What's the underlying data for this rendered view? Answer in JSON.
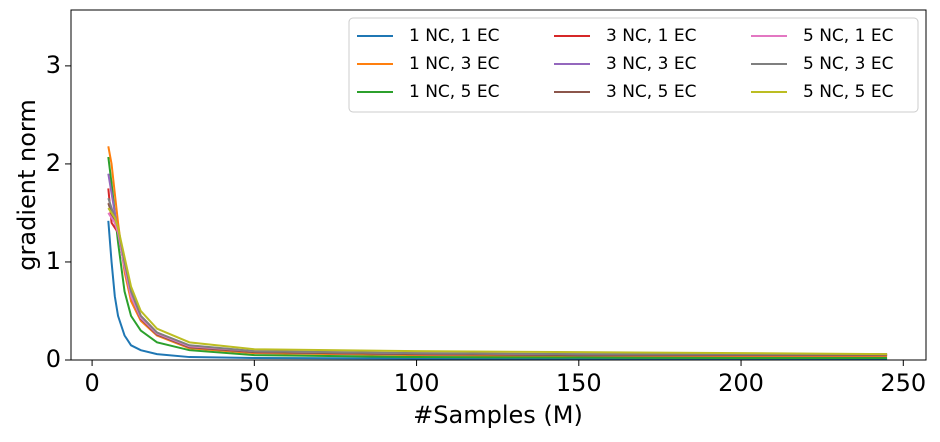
{
  "chart_data": {
    "type": "line",
    "x_label": "#Samples (M)",
    "y_label": "gradient norm",
    "x": [
      5,
      6,
      7,
      8,
      10,
      12,
      15,
      20,
      30,
      50,
      100,
      150,
      200,
      245
    ],
    "xlim": [
      -6.5,
      257
    ],
    "xticks": [
      0,
      50,
      100,
      150,
      200,
      250
    ],
    "ylim": [
      0,
      3.57
    ],
    "yticks": [
      0,
      1,
      2,
      3
    ],
    "legend": "upper right",
    "legend_columns": 3,
    "series": [
      {
        "name": "1 NC, 1 EC",
        "color": "#1f77b4",
        "values": [
          1.42,
          1.0,
          0.65,
          0.45,
          0.25,
          0.15,
          0.1,
          0.06,
          0.03,
          0.02,
          0.015,
          0.01,
          0.01,
          0.01
        ]
      },
      {
        "name": "1 NC, 3 EC",
        "color": "#ff7f0e",
        "values": [
          2.18,
          2.0,
          1.7,
          1.4,
          0.9,
          0.6,
          0.4,
          0.25,
          0.12,
          0.07,
          0.05,
          0.04,
          0.04,
          0.04
        ]
      },
      {
        "name": "1 NC, 5 EC",
        "color": "#2ca02c",
        "values": [
          2.07,
          1.8,
          1.5,
          1.2,
          0.7,
          0.45,
          0.3,
          0.18,
          0.1,
          0.05,
          0.03,
          0.025,
          0.02,
          0.02
        ]
      },
      {
        "name": "3 NC, 1 EC",
        "color": "#d62728",
        "values": [
          1.75,
          1.4,
          1.35,
          1.3,
          1.0,
          0.7,
          0.45,
          0.28,
          0.14,
          0.08,
          0.06,
          0.05,
          0.05,
          0.05
        ]
      },
      {
        "name": "3 NC, 3 EC",
        "color": "#9467bd",
        "values": [
          1.9,
          1.7,
          1.5,
          1.3,
          0.95,
          0.65,
          0.42,
          0.26,
          0.13,
          0.08,
          0.06,
          0.05,
          0.05,
          0.05
        ]
      },
      {
        "name": "3 NC, 5 EC",
        "color": "#8c564b",
        "values": [
          1.6,
          1.5,
          1.4,
          1.3,
          0.95,
          0.65,
          0.42,
          0.26,
          0.13,
          0.08,
          0.06,
          0.05,
          0.05,
          0.05
        ]
      },
      {
        "name": "5 NC, 1 EC",
        "color": "#e377c2",
        "values": [
          1.5,
          1.45,
          1.4,
          1.3,
          0.95,
          0.65,
          0.43,
          0.27,
          0.14,
          0.09,
          0.07,
          0.06,
          0.06,
          0.06
        ]
      },
      {
        "name": "5 NC, 3 EC",
        "color": "#7f7f7f",
        "values": [
          1.65,
          1.55,
          1.45,
          1.35,
          1.0,
          0.7,
          0.45,
          0.28,
          0.15,
          0.09,
          0.07,
          0.06,
          0.06,
          0.06
        ]
      },
      {
        "name": "5 NC, 5 EC",
        "color": "#bcbd22",
        "values": [
          1.55,
          1.5,
          1.45,
          1.35,
          1.05,
          0.75,
          0.5,
          0.32,
          0.18,
          0.11,
          0.09,
          0.08,
          0.07,
          0.06
        ]
      }
    ]
  }
}
